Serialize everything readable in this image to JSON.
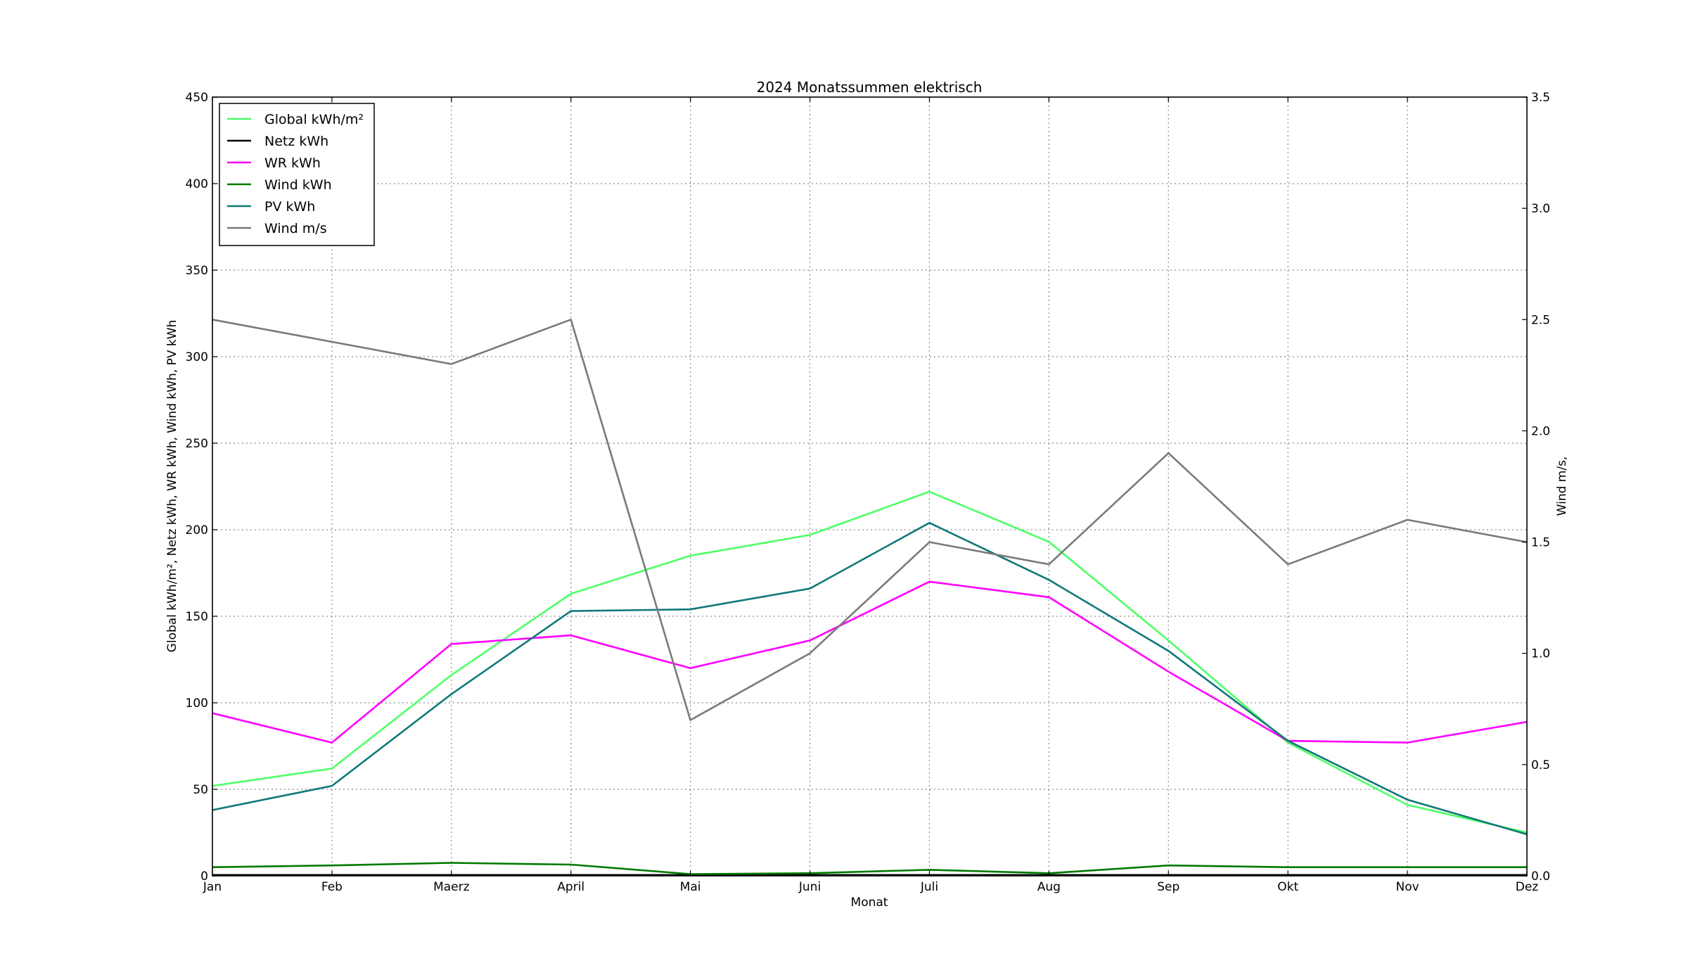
{
  "chart_data": {
    "type": "line",
    "title": "2024 Monatssummen elektrisch",
    "xlabel": "Monat",
    "ylabel": "Global kWh/m², Netz kWh, WR kWh, Wind kWh, PV kWh",
    "ylabel2": "Wind m/s,",
    "categories": [
      "Jan",
      "Feb",
      "Maerz",
      "April",
      "Mai",
      "Juni",
      "Juli",
      "Aug",
      "Sep",
      "Okt",
      "Nov",
      "Dez"
    ],
    "ylim": [
      0,
      450
    ],
    "yticks": [
      "0",
      "50",
      "100",
      "150",
      "200",
      "250",
      "300",
      "350",
      "400",
      "450"
    ],
    "ylim2": [
      0,
      3.5
    ],
    "yticks2": [
      "0.0",
      "0.5",
      "1.0",
      "1.5",
      "2.0",
      "2.5",
      "3.0",
      "3.5"
    ],
    "grid": true,
    "legend_position": "top-left",
    "series": [
      {
        "name": "Global kWh/m²",
        "axis": "left",
        "color": "#4dff66",
        "values": [
          52,
          62,
          116,
          163,
          185,
          197,
          222,
          193,
          136,
          77,
          41,
          25
        ]
      },
      {
        "name": "Netz kWh",
        "axis": "left",
        "color": "#000000",
        "values": [
          0.5,
          0.5,
          0.5,
          0.5,
          0.5,
          0.5,
          0.5,
          0.5,
          0.5,
          0.5,
          0.5,
          0.5
        ]
      },
      {
        "name": "WR kWh",
        "axis": "left",
        "color": "#ff00ff",
        "values": [
          94,
          77,
          134,
          139,
          120,
          136,
          170,
          161,
          118,
          78,
          77,
          89
        ]
      },
      {
        "name": "Wind kWh",
        "axis": "left",
        "color": "#007a00",
        "values": [
          5,
          6,
          7.5,
          6.5,
          1,
          1.5,
          3.5,
          1.5,
          6,
          5,
          5,
          5
        ]
      },
      {
        "name": "PV kWh",
        "axis": "left",
        "color": "#117878",
        "values": [
          38,
          52,
          105,
          153,
          154,
          166,
          204,
          171,
          130,
          78,
          44,
          24
        ]
      },
      {
        "name": "Wind m/s",
        "axis": "right",
        "color": "#7a7a7a",
        "values": [
          2.5,
          2.4,
          2.3,
          2.5,
          0.7,
          1.0,
          1.5,
          1.4,
          1.9,
          1.4,
          1.6,
          1.5
        ]
      }
    ]
  }
}
